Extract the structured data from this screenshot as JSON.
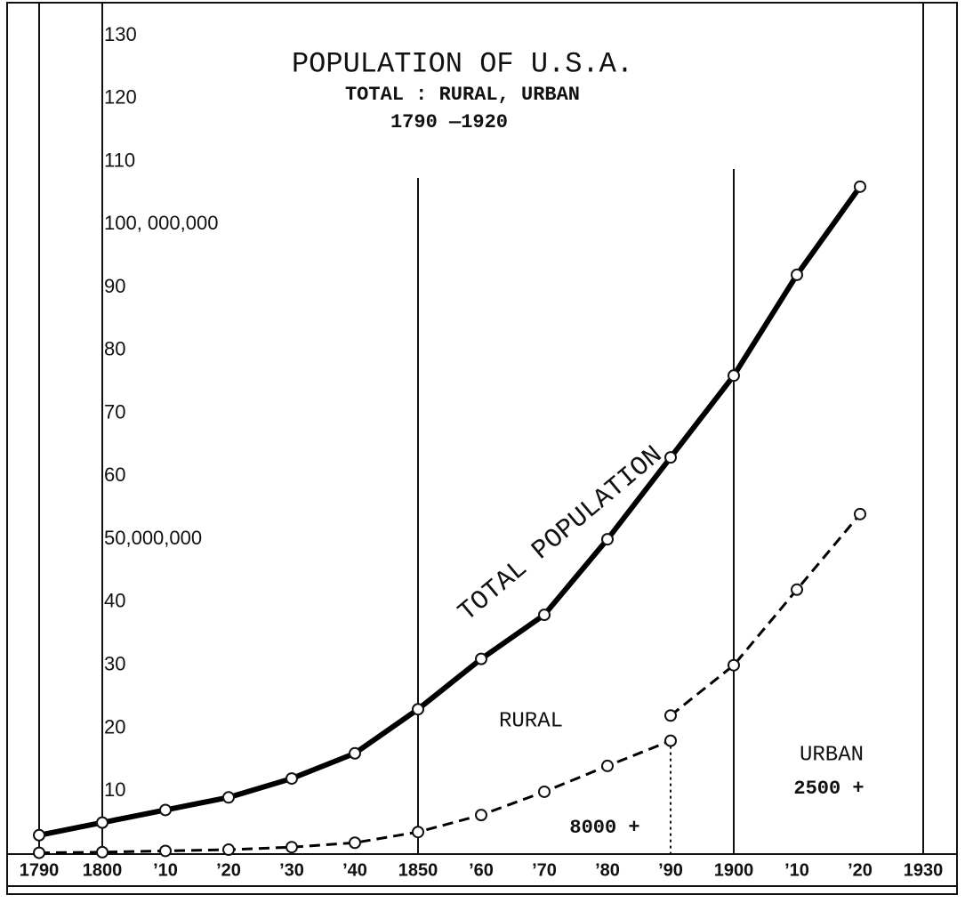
{
  "chart_data": {
    "type": "line",
    "title": "POPULATION OF U.S.A.",
    "subtitle": [
      "TOTAL : RURAL, URBAN",
      "1790 —1920"
    ],
    "annotations": [
      "RURAL",
      "URBAN"
    ],
    "xlim": [
      1790,
      1930
    ],
    "ylim": [
      0,
      130
    ],
    "xticks": [
      1790,
      1800,
      {
        "value": 1810,
        "label": "’10"
      },
      {
        "value": 1820,
        "label": "’20"
      },
      {
        "value": 1830,
        "label": "’30"
      },
      {
        "value": 1840,
        "label": "’40"
      },
      1850,
      {
        "value": 1860,
        "label": "’60"
      },
      {
        "value": 1870,
        "label": "’70"
      },
      {
        "value": 1880,
        "label": "’80"
      },
      {
        "value": 1890,
        "label": "’90"
      },
      1900,
      {
        "value": 1910,
        "label": "’10"
      },
      {
        "value": 1920,
        "label": "’20"
      },
      1930
    ],
    "yticks": [
      10,
      20,
      30,
      40,
      {
        "value": 50,
        "label": "50,000,000"
      },
      60,
      70,
      80,
      90,
      {
        "value": 100,
        "label": "100, 000,000"
      },
      110,
      120,
      130
    ],
    "series": [
      {
        "name": "TOTAL POPULATION",
        "color": "#000000",
        "style": "solid",
        "x": [
          1790,
          1800,
          1810,
          1820,
          1830,
          1840,
          1850,
          1860,
          1870,
          1880,
          1890,
          1900,
          1910,
          1920
        ],
        "values": [
          3,
          5,
          7,
          9,
          12,
          16,
          23,
          31,
          38,
          50,
          63,
          76,
          92,
          106
        ]
      },
      {
        "name": "8000 +",
        "color": "#000000",
        "style": "dashed",
        "x": [
          1790,
          1800,
          1810,
          1820,
          1830,
          1840,
          1850,
          1860,
          1870,
          1880,
          1890
        ],
        "values": [
          0.2,
          0.3,
          0.5,
          0.7,
          1.1,
          1.8,
          3.5,
          6.2,
          9.9,
          14,
          18
        ]
      },
      {
        "name": "2500 +",
        "color": "#000000",
        "style": "dashed",
        "x": [
          1890,
          1900,
          1910,
          1920
        ],
        "values": [
          22,
          30,
          42,
          54
        ]
      }
    ]
  }
}
